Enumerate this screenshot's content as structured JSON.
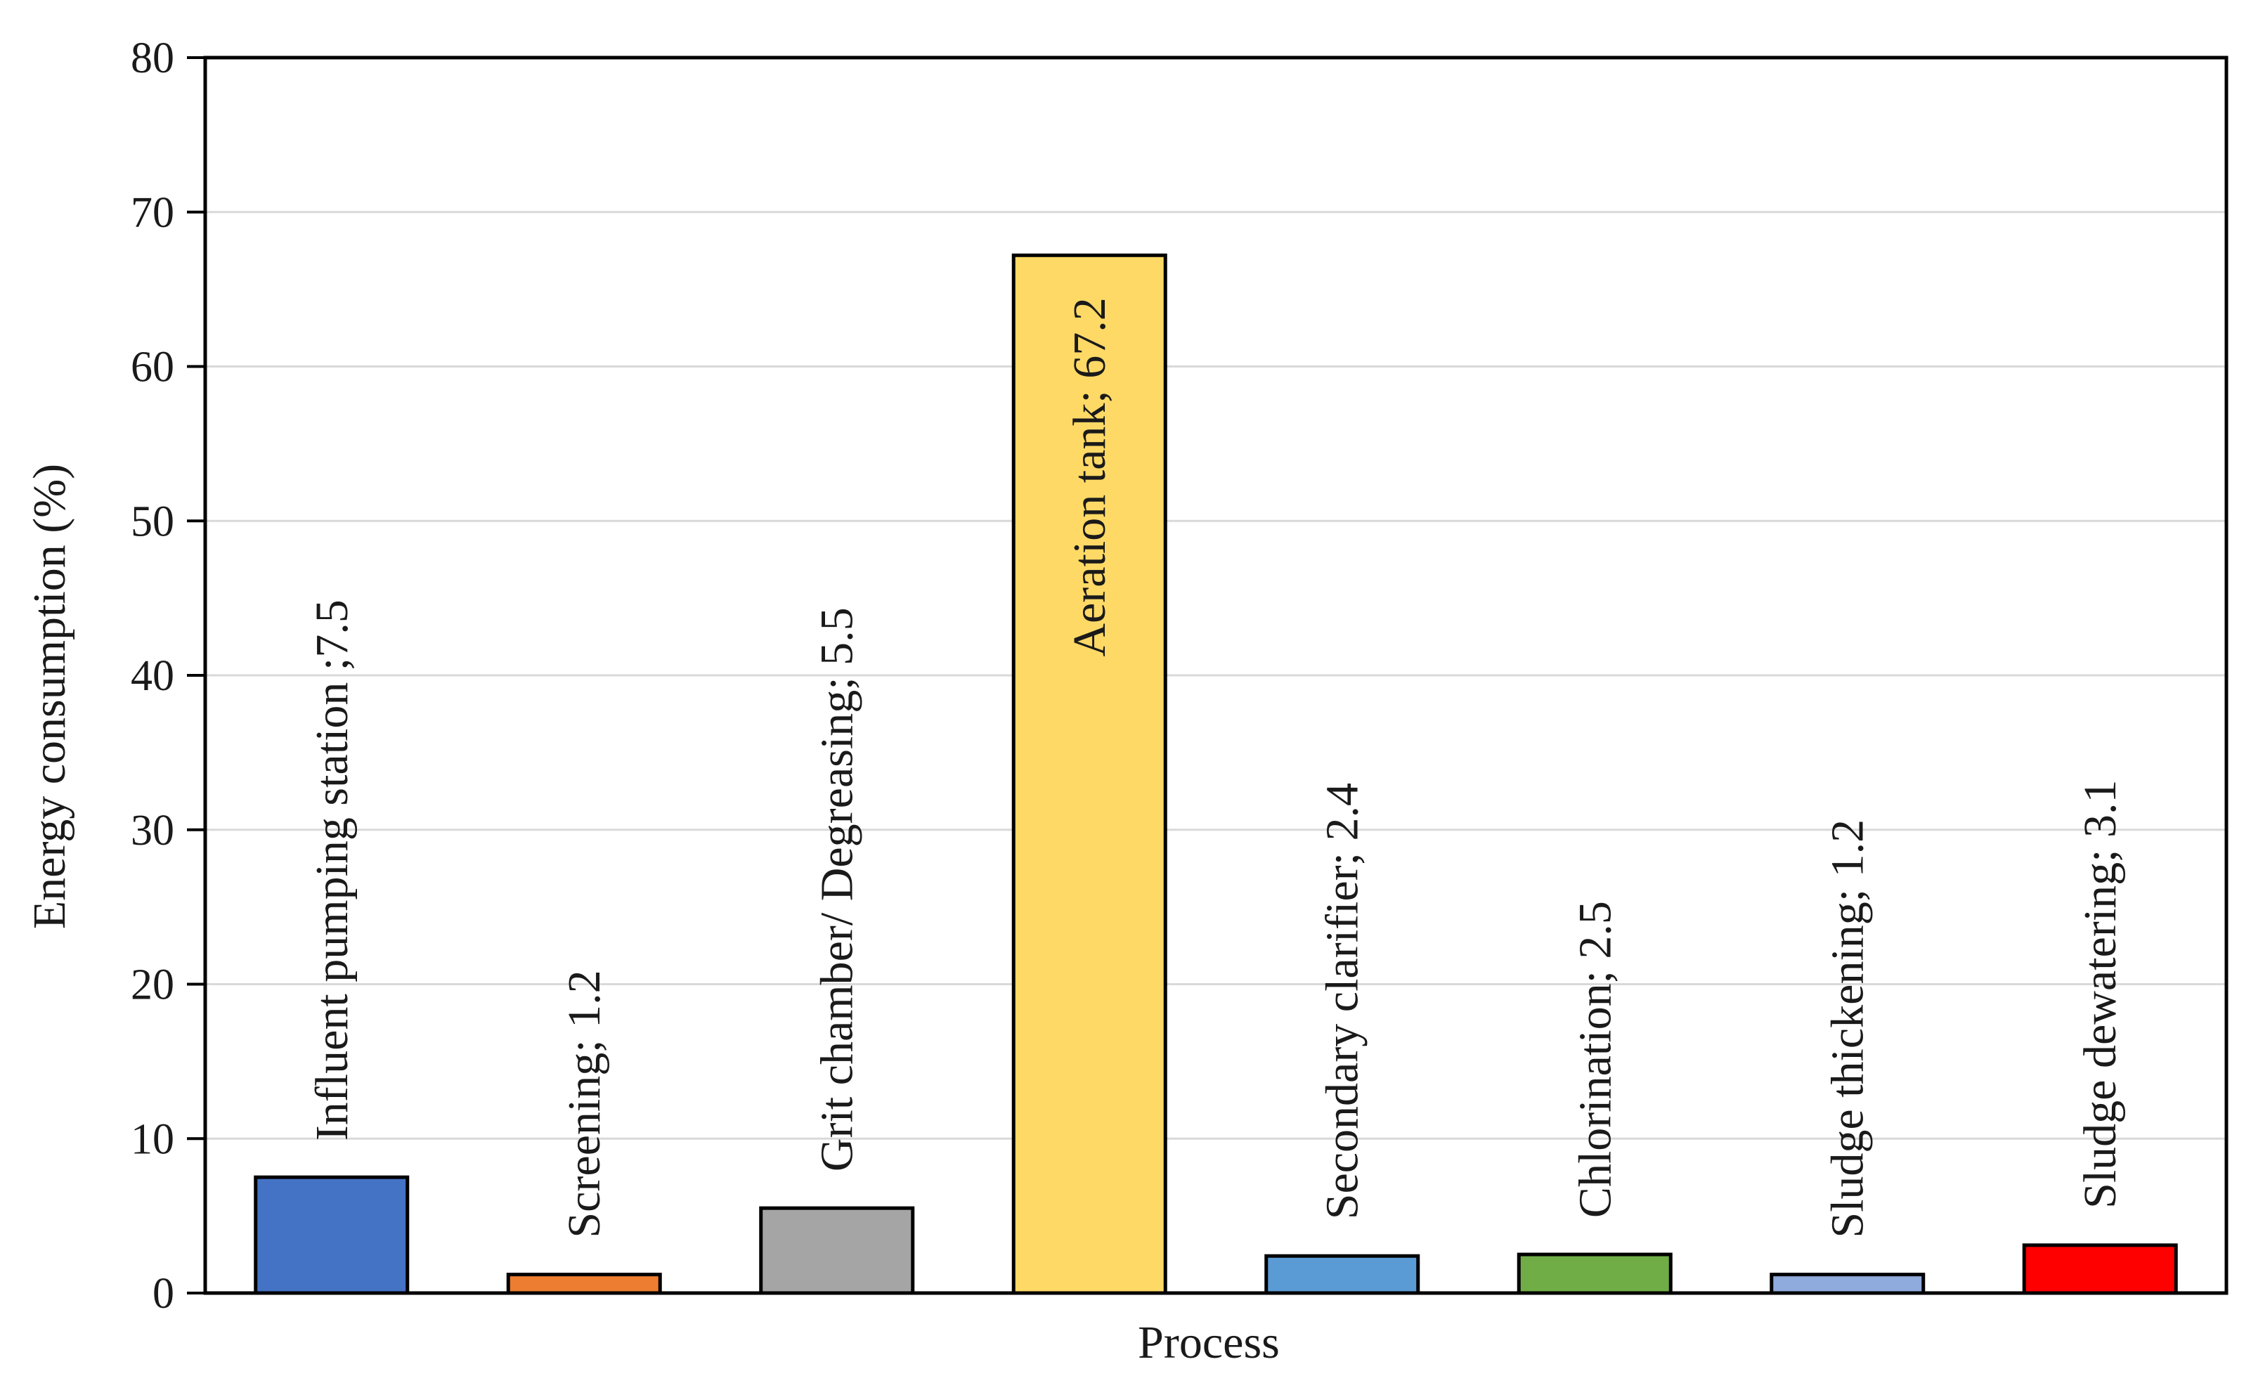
{
  "chart_data": {
    "type": "bar",
    "title": "",
    "xlabel": "Process",
    "ylabel": "Energy consumption (%)",
    "ylim": [
      0,
      80
    ],
    "yticks": [
      0,
      10,
      20,
      30,
      40,
      50,
      60,
      70,
      80
    ],
    "grid": "horizontal",
    "legend": "none",
    "categories": [
      "Influent pumping station",
      "Screening",
      "Grit chamber/ Degreasing",
      "Aeration tank",
      "Secondary clarifier",
      "Chlorination",
      "Sludge thickening",
      "Sludge dewatering"
    ],
    "values": [
      7.5,
      1.2,
      5.5,
      67.2,
      2.4,
      2.5,
      1.2,
      3.1
    ],
    "data_labels": [
      "Influent pumping station ;7.5",
      "Screening; 1.2",
      "Grit chamber/ Degreasing; 5.5",
      "Aeration tank; 67.2",
      "Secondary clarifier; 2.4",
      "Chlorination; 2.5",
      "Sludge thickening; 1.2",
      "Sludge dewatering; 3.1"
    ],
    "colors": [
      "#4472C4",
      "#ED7D31",
      "#A5A5A5",
      "#FFD966",
      "#5B9BD5",
      "#70AD47",
      "#8FAADC",
      "#FF0000"
    ]
  }
}
